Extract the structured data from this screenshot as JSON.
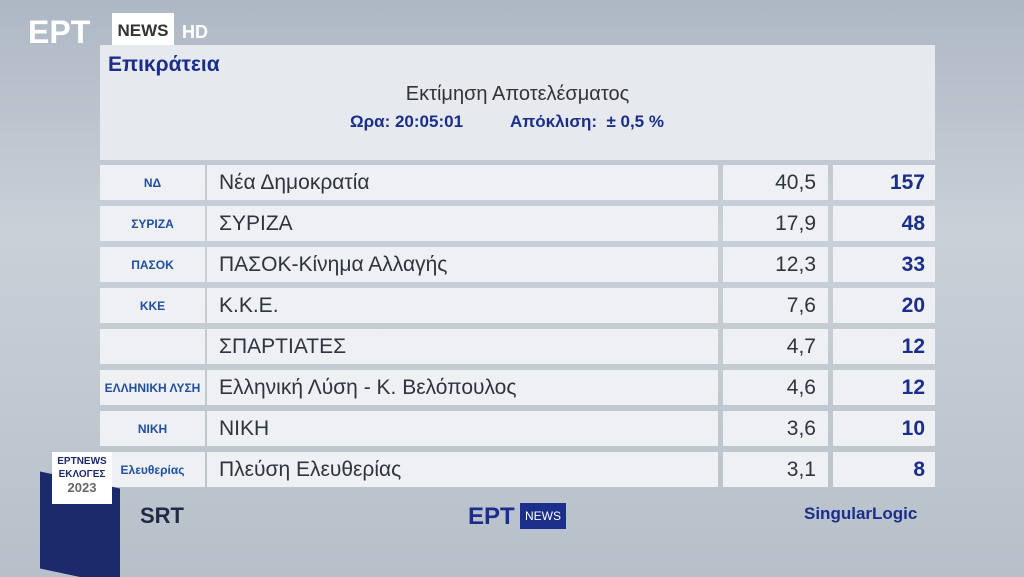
{
  "channel": {
    "logo": "ΕΡΤ",
    "news": "NEWS",
    "hd": "HD"
  },
  "header": {
    "region": "Επικράτεια",
    "title": "Εκτίμηση Αποτελέσματος",
    "time": "Ωρα: 20:05:01",
    "margin": "Απόκλιση:  ± 0,5 %"
  },
  "table": {
    "rows": [
      {
        "logo": "ΝΔ",
        "party": "Νέα Δημοκρατία",
        "percent": "40,5",
        "seats": 157
      },
      {
        "logo": "ΣΥΡΙΖΑ",
        "party": "ΣΥΡΙΖΑ",
        "percent": "17,9",
        "seats": 48
      },
      {
        "logo": "ΠΑΣΟΚ",
        "party": "ΠΑΣΟΚ-Κίνημα Αλλαγής",
        "percent": "12,3",
        "seats": 33
      },
      {
        "logo": "ΚΚΕ",
        "party": "Κ.Κ.Ε.",
        "percent": "7,6",
        "seats": 20
      },
      {
        "party": "ΣΠΑΡΤΙΑΤΕΣ",
        "percent": "4,7",
        "seats": 12
      },
      {
        "logo": "ΕΛΛΗΝΙΚΗ ΛΥΣΗ",
        "party": "Ελληνική Λύση - Κ. Βελόπουλος",
        "percent": "4,6",
        "seats": 12
      },
      {
        "logo": "ΝΙΚΗ",
        "party": "ΝΙΚΗ",
        "percent": "3,6",
        "seats": 10
      },
      {
        "logo": "Ελευθερίας",
        "party": "Πλεύση Ελευθερίας",
        "percent": "3,1",
        "seats": 8
      }
    ]
  },
  "footer": {
    "badge": {
      "brand": "ΕΡΤNEWS",
      "event": "ΕΚΛΟΓΕΣ",
      "year": "2023"
    },
    "srt": "SRT",
    "ert": "ΕΡΤ",
    "ert_news": "NEWS",
    "singular": "SingularLogic"
  }
}
